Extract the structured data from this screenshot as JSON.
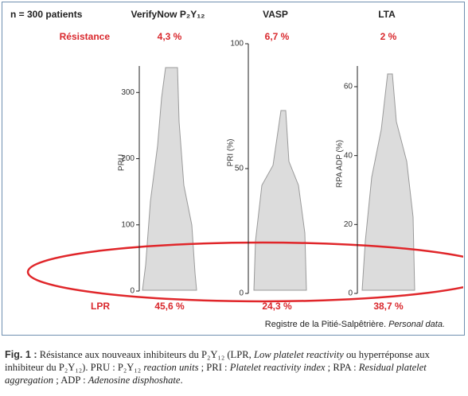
{
  "figure": {
    "sample": "n = 300 patients",
    "resistance_label": "Résistance",
    "lpr_label": "LPR",
    "panels": [
      {
        "title": "VerifyNow P₂Y₁₂",
        "ylabel": "PRU",
        "resistance": "4,3 %",
        "lpr": "45,6 %",
        "ylim": [
          0,
          340
        ],
        "yticks": [
          0,
          100,
          200,
          300
        ]
      },
      {
        "title": "VASP",
        "ylabel": "PRI (%)",
        "resistance": "6,7 %",
        "lpr": "24,3 %",
        "ylim": [
          0,
          100
        ],
        "yticks": [
          0,
          50,
          100
        ]
      },
      {
        "title": "LTA",
        "ylabel": "RPA ADP (%)",
        "resistance": "2 %",
        "lpr": "38,7 %",
        "ylim": [
          0,
          66
        ],
        "yticks": [
          0,
          20,
          40,
          60
        ]
      }
    ],
    "source": [
      "Registre de la Pitié-Salpêtrière. ",
      "Personal data."
    ]
  },
  "caption": {
    "label": "Fig. 1 :",
    "segments": [
      {
        "text": " Résistance aux nouveaux inhibiteurs du P₂Y₁₂ (LPR, ",
        "italic": false
      },
      {
        "text": "Low platelet reactivity",
        "italic": true
      },
      {
        "text": " ou hyperréponse aux inhibiteur du P₂Y₁₂). PRU : P₂Y₁₂ ",
        "italic": false
      },
      {
        "text": "reaction units",
        "italic": true
      },
      {
        "text": " ; PRI : ",
        "italic": false
      },
      {
        "text": "Platelet reactivity index",
        "italic": true
      },
      {
        "text": " ; RPA : ",
        "italic": false
      },
      {
        "text": "Residual platelet aggregation",
        "italic": true
      },
      {
        "text": " ; ADP : ",
        "italic": false
      },
      {
        "text": "Adenosine disphoshate",
        "italic": true
      },
      {
        "text": ".",
        "italic": false
      }
    ]
  }
}
